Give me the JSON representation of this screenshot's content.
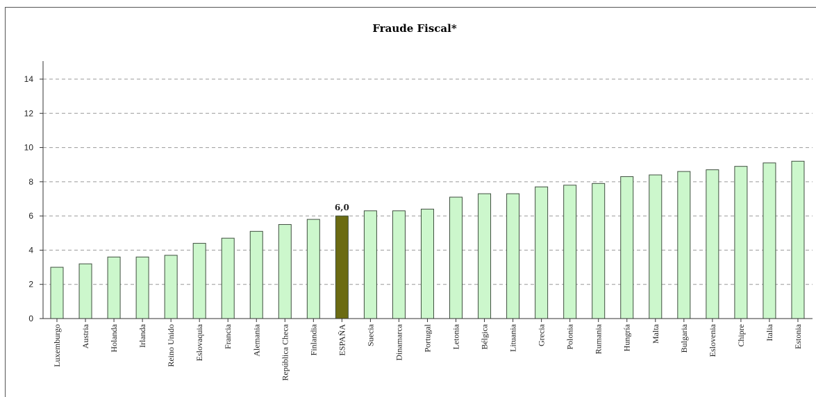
{
  "chart_data": {
    "type": "bar",
    "title": "Fraude Fiscal*",
    "xlabel": "",
    "ylabel": "",
    "ylim": [
      0,
      15
    ],
    "yticks": [
      0,
      2,
      4,
      6,
      8,
      10,
      12,
      14
    ],
    "grid": true,
    "categories": [
      "Luxemburgo",
      "Austria",
      "Holanda",
      "Irlanda",
      "Reino Unido",
      "Eslovaquia",
      "Francia",
      "Alemania",
      "República Checa",
      "Finlandia",
      "ESPAÑA",
      "Suecia",
      "Dinamarca",
      "Portugal",
      "Letonia",
      "Bélgica",
      "Lituania",
      "Grecia",
      "Polonia",
      "Rumania",
      "Hungría",
      "Malta",
      "Bulgaria",
      "Eslovenia",
      "Chipre",
      "Italia",
      "Estonia"
    ],
    "values": [
      3.0,
      3.2,
      3.6,
      3.6,
      3.7,
      4.4,
      4.7,
      5.1,
      5.5,
      5.8,
      6.0,
      6.3,
      6.3,
      6.4,
      7.1,
      7.3,
      7.3,
      7.7,
      7.8,
      7.9,
      8.3,
      8.4,
      8.6,
      8.7,
      8.9,
      9.1,
      9.2
    ],
    "highlight": {
      "category": "ESPAÑA",
      "label": "6,0"
    },
    "colors": {
      "bar": "#ccf7cc",
      "bar_border": "#3f4f3f",
      "highlight": "#6b6b12",
      "grid": "#999999"
    }
  }
}
